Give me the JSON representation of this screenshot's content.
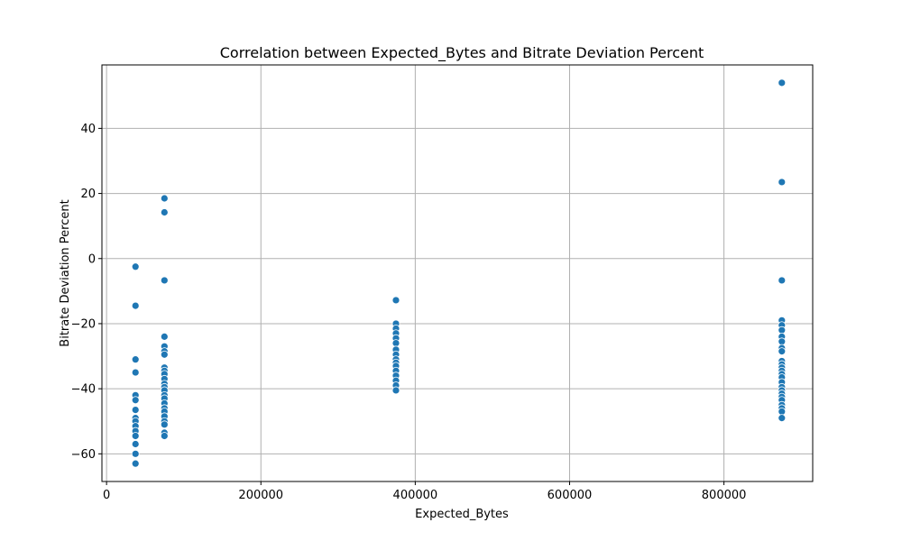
{
  "chart_data": {
    "type": "scatter",
    "title": "Correlation between Expected_Bytes and Bitrate Deviation Percent",
    "xlabel": "Expected_Bytes",
    "ylabel": "Bitrate Deviation Percent",
    "xlim": [
      -6000,
      915000
    ],
    "ylim": [
      -68.5,
      59.5
    ],
    "xticks": [
      0,
      200000,
      400000,
      600000,
      800000
    ],
    "yticks": [
      -60,
      -40,
      -20,
      0,
      20,
      40
    ],
    "grid": true,
    "point_color": "#1f77b4",
    "points": [
      {
        "x": 37500,
        "y": -2.5
      },
      {
        "x": 37500,
        "y": -14.5
      },
      {
        "x": 37500,
        "y": -31
      },
      {
        "x": 37500,
        "y": -35
      },
      {
        "x": 37500,
        "y": -42
      },
      {
        "x": 37500,
        "y": -43.5
      },
      {
        "x": 37500,
        "y": -46.5
      },
      {
        "x": 37500,
        "y": -49
      },
      {
        "x": 37500,
        "y": -50
      },
      {
        "x": 37500,
        "y": -51.5
      },
      {
        "x": 37500,
        "y": -53
      },
      {
        "x": 37500,
        "y": -54.5
      },
      {
        "x": 37500,
        "y": -57
      },
      {
        "x": 37500,
        "y": -60
      },
      {
        "x": 37500,
        "y": -63
      },
      {
        "x": 75000,
        "y": 18.5
      },
      {
        "x": 75000,
        "y": 14.2
      },
      {
        "x": 75000,
        "y": -6.7
      },
      {
        "x": 75000,
        "y": -24
      },
      {
        "x": 75000,
        "y": -27
      },
      {
        "x": 75000,
        "y": -28.5
      },
      {
        "x": 75000,
        "y": -29.5
      },
      {
        "x": 75000,
        "y": -33.5
      },
      {
        "x": 75000,
        "y": -34.5
      },
      {
        "x": 75000,
        "y": -35.5
      },
      {
        "x": 75000,
        "y": -37
      },
      {
        "x": 75000,
        "y": -38.5
      },
      {
        "x": 75000,
        "y": -39.5
      },
      {
        "x": 75000,
        "y": -40.5
      },
      {
        "x": 75000,
        "y": -42
      },
      {
        "x": 75000,
        "y": -43
      },
      {
        "x": 75000,
        "y": -44.5
      },
      {
        "x": 75000,
        "y": -46
      },
      {
        "x": 75000,
        "y": -47
      },
      {
        "x": 75000,
        "y": -48.5
      },
      {
        "x": 75000,
        "y": -50
      },
      {
        "x": 75000,
        "y": -51
      },
      {
        "x": 75000,
        "y": -53.5
      },
      {
        "x": 75000,
        "y": -54.5
      },
      {
        "x": 375000,
        "y": -12.8
      },
      {
        "x": 375000,
        "y": -20
      },
      {
        "x": 375000,
        "y": -21.5
      },
      {
        "x": 375000,
        "y": -23
      },
      {
        "x": 375000,
        "y": -24.5
      },
      {
        "x": 375000,
        "y": -26
      },
      {
        "x": 375000,
        "y": -28
      },
      {
        "x": 375000,
        "y": -29.5
      },
      {
        "x": 375000,
        "y": -31
      },
      {
        "x": 375000,
        "y": -32
      },
      {
        "x": 375000,
        "y": -33
      },
      {
        "x": 375000,
        "y": -34.5
      },
      {
        "x": 375000,
        "y": -36
      },
      {
        "x": 375000,
        "y": -37.5
      },
      {
        "x": 375000,
        "y": -39
      },
      {
        "x": 375000,
        "y": -40.5
      },
      {
        "x": 875000,
        "y": 54
      },
      {
        "x": 875000,
        "y": 23.5
      },
      {
        "x": 875000,
        "y": -6.7
      },
      {
        "x": 875000,
        "y": -19
      },
      {
        "x": 875000,
        "y": -20.5
      },
      {
        "x": 875000,
        "y": -22
      },
      {
        "x": 875000,
        "y": -24
      },
      {
        "x": 875000,
        "y": -25.5
      },
      {
        "x": 875000,
        "y": -27.5
      },
      {
        "x": 875000,
        "y": -28.5
      },
      {
        "x": 875000,
        "y": -31.5
      },
      {
        "x": 875000,
        "y": -32.5
      },
      {
        "x": 875000,
        "y": -33.5
      },
      {
        "x": 875000,
        "y": -34.5
      },
      {
        "x": 875000,
        "y": -35.5
      },
      {
        "x": 875000,
        "y": -36.5
      },
      {
        "x": 875000,
        "y": -38
      },
      {
        "x": 875000,
        "y": -39.5
      },
      {
        "x": 875000,
        "y": -40.5
      },
      {
        "x": 875000,
        "y": -41.5
      },
      {
        "x": 875000,
        "y": -42.5
      },
      {
        "x": 875000,
        "y": -43.5
      },
      {
        "x": 875000,
        "y": -45
      },
      {
        "x": 875000,
        "y": -46
      },
      {
        "x": 875000,
        "y": -47
      },
      {
        "x": 875000,
        "y": -49
      }
    ]
  }
}
